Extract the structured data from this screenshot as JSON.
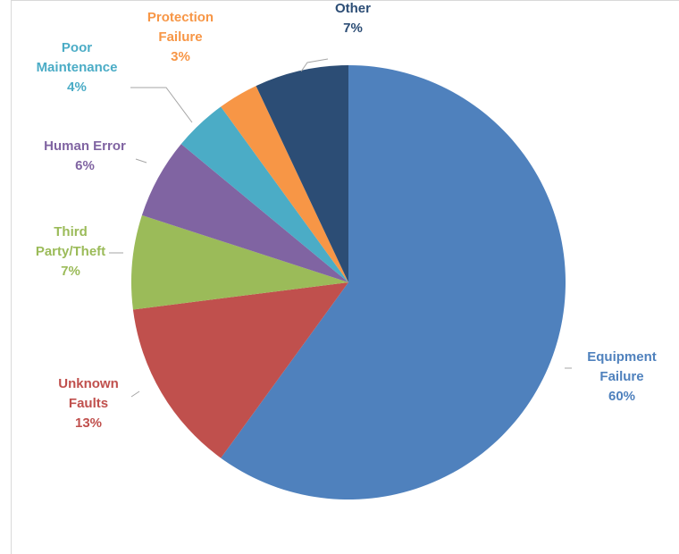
{
  "chart_data": {
    "type": "pie",
    "title": "",
    "slices": [
      {
        "name": "Equipment Failure",
        "lines": [
          "Equipment",
          "Failure"
        ],
        "value": 60,
        "value_label": "60%",
        "color": "#4f81bd"
      },
      {
        "name": "Unknown Faults",
        "lines": [
          "Unknown",
          "Faults"
        ],
        "value": 13,
        "value_label": "13%",
        "color": "#c0504d"
      },
      {
        "name": "Third Party/Theft",
        "lines": [
          "Third",
          "Party/Theft"
        ],
        "value": 7,
        "value_label": "7%",
        "color": "#9bbb59"
      },
      {
        "name": "Human Error",
        "lines": [
          "Human Error"
        ],
        "value": 6,
        "value_label": "6%",
        "color": "#8064a2"
      },
      {
        "name": "Poor Maintenance",
        "lines": [
          "Poor",
          "Maintenance"
        ],
        "value": 4,
        "value_label": "4%",
        "color": "#4bacc6"
      },
      {
        "name": "Protection Failure",
        "lines": [
          "Protection",
          "Failure"
        ],
        "value": 3,
        "value_label": "3%",
        "color": "#f79646"
      },
      {
        "name": "Other",
        "lines": [
          "Other"
        ],
        "value": 7,
        "value_label": "7%",
        "color": "#2c4d75"
      }
    ],
    "start_angle": "12 o'clock",
    "direction": "clockwise",
    "label_position": "outside with leader lines",
    "legend": "none",
    "leader_line_color": "#a6a6a6"
  }
}
